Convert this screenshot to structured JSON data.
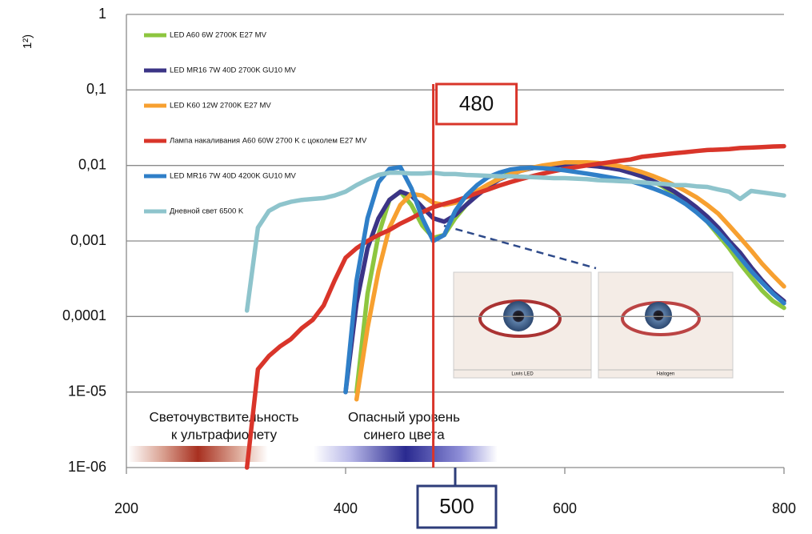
{
  "chart_data": {
    "type": "line",
    "ylabel": "1²)",
    "log_y": true,
    "grid": true,
    "legend": "upper left",
    "xlim": [
      200,
      800
    ],
    "xticks": [
      200,
      400,
      600,
      800
    ],
    "ylim": [
      1e-06,
      1
    ],
    "yticks": [
      {
        "value": 1e-06,
        "label": "1E-06"
      },
      {
        "value": 1e-05,
        "label": "1E-05"
      },
      {
        "value": 0.0001,
        "label": "0,0001"
      },
      {
        "value": 0.001,
        "label": "0,001"
      },
      {
        "value": 0.01,
        "label": "0,01"
      },
      {
        "value": 0.1,
        "label": "0,1"
      },
      1
    ],
    "x": [
      310,
      320,
      330,
      340,
      350,
      360,
      370,
      380,
      390,
      400,
      410,
      420,
      430,
      440,
      450,
      460,
      470,
      480,
      490,
      500,
      510,
      520,
      530,
      540,
      550,
      560,
      570,
      580,
      590,
      600,
      610,
      620,
      630,
      640,
      650,
      660,
      670,
      680,
      690,
      700,
      710,
      720,
      730,
      740,
      750,
      760,
      770,
      780,
      790,
      800
    ],
    "series": [
      {
        "name": "LED A60 6W 2700K E27 MV",
        "color": "#8dc63f",
        "values": [
          null,
          null,
          null,
          null,
          null,
          null,
          null,
          null,
          null,
          null,
          1e-05,
          0.0002,
          0.0012,
          0.0035,
          0.0045,
          0.003,
          0.0016,
          0.0011,
          0.0012,
          0.002,
          0.003,
          0.0042,
          0.0055,
          0.0068,
          0.0078,
          0.0086,
          0.0092,
          0.0097,
          0.01,
          0.0102,
          0.0103,
          0.0102,
          0.01,
          0.0095,
          0.009,
          0.0082,
          0.0072,
          0.0062,
          0.0052,
          0.0042,
          0.0033,
          0.0025,
          0.0018,
          0.0012,
          0.0008,
          0.0005,
          0.00033,
          0.00022,
          0.00016,
          0.00013
        ]
      },
      {
        "name": "LED MR16 7W 40D 2700K GU10 MV",
        "color": "#3b3486",
        "values": [
          null,
          null,
          null,
          null,
          null,
          null,
          null,
          null,
          null,
          1e-05,
          0.00015,
          0.0008,
          0.002,
          0.0035,
          0.0045,
          0.004,
          0.0028,
          0.002,
          0.0018,
          0.0022,
          0.003,
          0.004,
          0.0052,
          0.0065,
          0.0075,
          0.0085,
          0.0092,
          0.0097,
          0.01,
          0.0102,
          0.0102,
          0.01,
          0.0097,
          0.0093,
          0.0088,
          0.008,
          0.0072,
          0.0063,
          0.0054,
          0.0045,
          0.0036,
          0.0028,
          0.0021,
          0.0015,
          0.001,
          0.0007,
          0.00045,
          0.0003,
          0.00021,
          0.00016
        ]
      },
      {
        "name": "LED K60 12W 2700K E27 MV",
        "color": "#f7a030",
        "values": [
          null,
          null,
          null,
          null,
          null,
          null,
          null,
          null,
          null,
          null,
          8e-06,
          7e-05,
          0.0004,
          0.0015,
          0.003,
          0.0042,
          0.004,
          0.0032,
          0.003,
          0.0032,
          0.0038,
          0.0046,
          0.0056,
          0.0066,
          0.0076,
          0.0085,
          0.0093,
          0.01,
          0.0105,
          0.011,
          0.011,
          0.011,
          0.0108,
          0.0103,
          0.0098,
          0.009,
          0.0082,
          0.0073,
          0.0064,
          0.0055,
          0.0046,
          0.0038,
          0.003,
          0.0023,
          0.0016,
          0.0011,
          0.00075,
          0.0005,
          0.00035,
          0.00025
        ]
      },
      {
        "name": "Лампа  накаливания A60 60W 2700 K с цоколем E27 MV",
        "color": "#d9352a",
        "values": [
          1e-06,
          2e-05,
          3e-05,
          4e-05,
          5e-05,
          7e-05,
          9e-05,
          0.00014,
          0.0003,
          0.0006,
          0.0008,
          0.001,
          0.0012,
          0.0014,
          0.0017,
          0.002,
          0.0024,
          0.0028,
          0.0031,
          0.0034,
          0.0038,
          0.0043,
          0.0048,
          0.0054,
          0.006,
          0.0066,
          0.0072,
          0.0078,
          0.0084,
          0.009,
          0.0095,
          0.01,
          0.0105,
          0.011,
          0.0115,
          0.012,
          0.013,
          0.0135,
          0.014,
          0.0145,
          0.015,
          0.0155,
          0.016,
          0.0162,
          0.0165,
          0.017,
          0.0172,
          0.0175,
          0.0178,
          0.018
        ]
      },
      {
        "name": "LED MR16 7W 40D 4200K GU10 MV",
        "color": "#2f7fc8",
        "values": [
          null,
          null,
          null,
          null,
          null,
          null,
          null,
          null,
          null,
          1e-05,
          0.0003,
          0.002,
          0.006,
          0.009,
          0.0095,
          0.005,
          0.002,
          0.001,
          0.0012,
          0.0025,
          0.004,
          0.0055,
          0.007,
          0.008,
          0.0088,
          0.0092,
          0.0093,
          0.0092,
          0.009,
          0.0086,
          0.0082,
          0.0078,
          0.0074,
          0.007,
          0.0066,
          0.0062,
          0.0056,
          0.005,
          0.0044,
          0.0038,
          0.0031,
          0.0024,
          0.0018,
          0.0013,
          0.0009,
          0.0006,
          0.0004,
          0.00028,
          0.0002,
          0.00015
        ]
      },
      {
        "name": "Дневной свет 6500 K",
        "color": "#8ec4cc",
        "values": [
          0.00012,
          0.0015,
          0.0025,
          0.003,
          0.0033,
          0.0035,
          0.0036,
          0.0037,
          0.004,
          0.0045,
          0.0055,
          0.0065,
          0.0075,
          0.008,
          0.008,
          0.0078,
          0.0078,
          0.008,
          0.0077,
          0.0077,
          0.0075,
          0.0074,
          0.0073,
          0.0072,
          0.0072,
          0.0071,
          0.007,
          0.0069,
          0.0068,
          0.0068,
          0.0067,
          0.0066,
          0.0064,
          0.0063,
          0.0062,
          0.0061,
          0.006,
          0.0058,
          0.0057,
          0.0055,
          0.0055,
          0.0053,
          0.0052,
          0.0048,
          0.0045,
          0.0036,
          0.0046,
          0.0044,
          0.0042,
          0.004
        ]
      }
    ],
    "annotations": [
      {
        "x": 480,
        "color": "#d9352a"
      },
      {
        "x": 500,
        "color": "#2e3d7a"
      }
    ],
    "band_labels": [
      [
        "Светочувствительность",
        "к ультрафиолету"
      ],
      [
        "Опасный уровень",
        "синего цвета"
      ]
    ],
    "image_captions": [
      "Luvis LED",
      "Halogen"
    ]
  }
}
